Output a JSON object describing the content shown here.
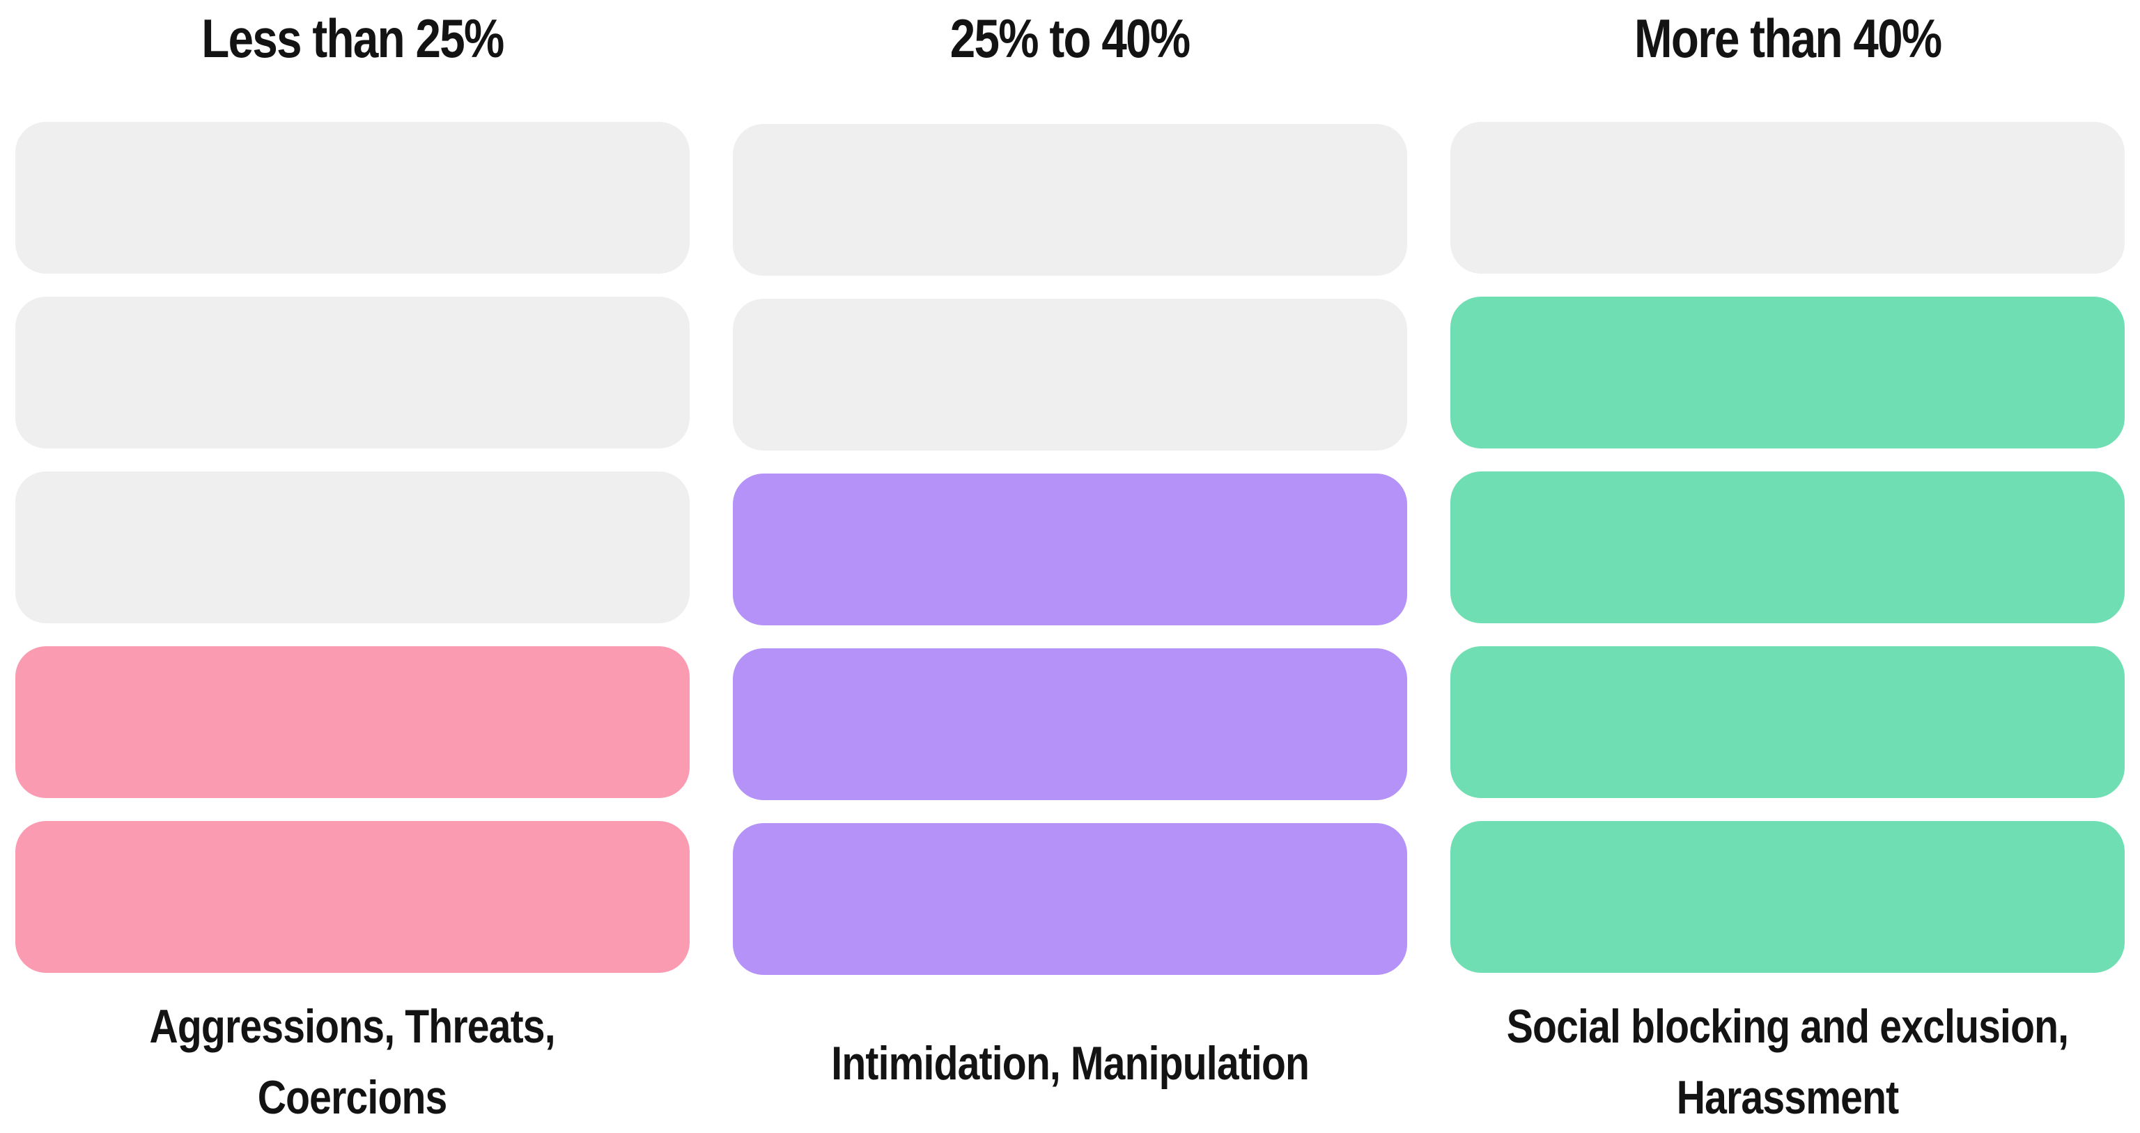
{
  "chart_data": {
    "type": "bar",
    "variant": "segmented-category-rating",
    "title": "",
    "orientation": "vertical-segment-stacks",
    "segments_per_column": 5,
    "fill_direction": "bottom-up",
    "empty_color": "#efefef",
    "text_color": "#131313",
    "background_color": "#ffffff",
    "legend_position": "none",
    "grid": false,
    "columns": [
      {
        "header": "Less than 25%",
        "label": "Aggressions, Threats,\nCoercions",
        "total_segments": 5,
        "filled_segments": 2,
        "empty_segments": 3,
        "fill_color": "#fa9bb2"
      },
      {
        "header": "25% to 40%",
        "label": "Intimidation, Manipulation",
        "total_segments": 5,
        "filled_segments": 3,
        "empty_segments": 2,
        "fill_color": "#b492f8"
      },
      {
        "header": "More than 40%",
        "label": "Social blocking and exclusion,\nHarassment",
        "total_segments": 5,
        "filled_segments": 4,
        "empty_segments": 1,
        "fill_color": "#6fdfb3"
      }
    ]
  }
}
